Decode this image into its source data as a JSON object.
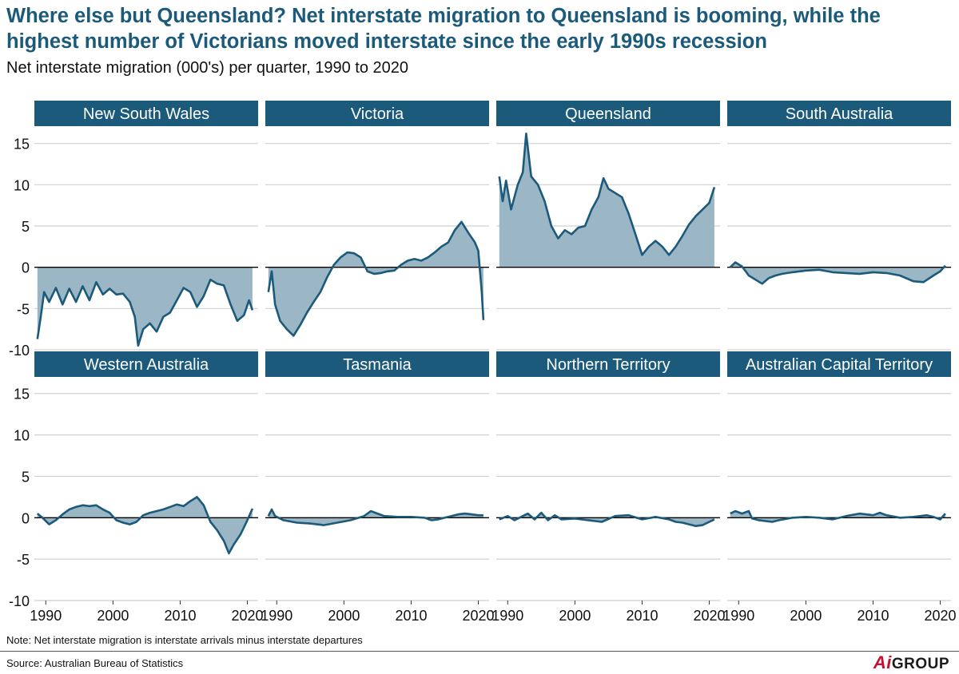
{
  "header": {
    "title": "Where else but Queensland? Net interstate migration to Queensland is booming, while the highest number of Victorians moved interstate since the early 1990s recession",
    "subtitle": "Net interstate migration (000's) per quarter, 1990 to 2020"
  },
  "footer": {
    "note": "Note: Net interstate migration is interstate arrivals minus interstate departures",
    "source": "Source: Australian Bureau of Statistics",
    "logo_mark": "Ai",
    "logo_text": "GROUP"
  },
  "colors": {
    "line": "#1b5a7a",
    "fill": "#9bb6c4",
    "strip": "#1b5a7a",
    "strip_text": "#ffffff",
    "grid": "#d0d0d0",
    "zero": "#000000"
  },
  "chart_data": {
    "type": "area",
    "layout": "facets 2 rows x 4 columns, shared axes",
    "ylim": [
      -10,
      17
    ],
    "yticks": [
      15,
      10,
      5,
      0,
      -5,
      -10
    ],
    "xlim": [
      1988.3,
      2021.6
    ],
    "xticks": [
      1990,
      2000,
      2010,
      2020
    ],
    "grid": true,
    "panels": [
      {
        "name": "New South Wales",
        "points": [
          [
            1988.75,
            -8.7
          ],
          [
            1989.25,
            -6
          ],
          [
            1989.75,
            -3
          ],
          [
            1990.5,
            -4.2
          ],
          [
            1991.5,
            -2.5
          ],
          [
            1992.5,
            -4.5
          ],
          [
            1993.5,
            -2.6
          ],
          [
            1994.5,
            -4.2
          ],
          [
            1995.5,
            -2.3
          ],
          [
            1996.5,
            -4
          ],
          [
            1997.5,
            -1.8
          ],
          [
            1998.5,
            -3.3
          ],
          [
            1999.5,
            -2.6
          ],
          [
            2000.5,
            -3.3
          ],
          [
            2001.5,
            -3.2
          ],
          [
            2002.5,
            -4.2
          ],
          [
            2003.25,
            -6
          ],
          [
            2003.75,
            -9.5
          ],
          [
            2004.5,
            -7.5
          ],
          [
            2005.5,
            -6.8
          ],
          [
            2006.5,
            -7.8
          ],
          [
            2007.5,
            -6
          ],
          [
            2008.5,
            -5.5
          ],
          [
            2009.5,
            -4
          ],
          [
            2010.5,
            -2.5
          ],
          [
            2011.5,
            -3
          ],
          [
            2012.5,
            -4.8
          ],
          [
            2013.5,
            -3.5
          ],
          [
            2014.5,
            -1.5
          ],
          [
            2015.5,
            -2
          ],
          [
            2016.5,
            -2.2
          ],
          [
            2017.5,
            -4.5
          ],
          [
            2018.5,
            -6.5
          ],
          [
            2019.5,
            -5.8
          ],
          [
            2020.25,
            -4
          ],
          [
            2020.75,
            -5.2
          ]
        ]
      },
      {
        "name": "Victoria",
        "points": [
          [
            1988.75,
            -3
          ],
          [
            1989.25,
            -0.5
          ],
          [
            1989.75,
            -4.5
          ],
          [
            1990.5,
            -6.5
          ],
          [
            1991.5,
            -7.5
          ],
          [
            1992.5,
            -8.3
          ],
          [
            1993.5,
            -7
          ],
          [
            1994.5,
            -5.5
          ],
          [
            1995.5,
            -4.2
          ],
          [
            1996.5,
            -3
          ],
          [
            1997.5,
            -1.2
          ],
          [
            1998.5,
            0.3
          ],
          [
            1999.5,
            1.2
          ],
          [
            2000.5,
            1.8
          ],
          [
            2001.5,
            1.7
          ],
          [
            2002.5,
            1.2
          ],
          [
            2003.5,
            -0.5
          ],
          [
            2004.5,
            -0.8
          ],
          [
            2005.5,
            -0.7
          ],
          [
            2006.5,
            -0.5
          ],
          [
            2007.5,
            -0.4
          ],
          [
            2008.5,
            0.3
          ],
          [
            2009.5,
            0.8
          ],
          [
            2010.5,
            1
          ],
          [
            2011.5,
            0.8
          ],
          [
            2012.5,
            1.2
          ],
          [
            2013.5,
            1.8
          ],
          [
            2014.5,
            2.5
          ],
          [
            2015.5,
            3
          ],
          [
            2016.5,
            4.5
          ],
          [
            2017.5,
            5.5
          ],
          [
            2018.5,
            4.2
          ],
          [
            2019.5,
            3
          ],
          [
            2020,
            2
          ],
          [
            2020.5,
            -3
          ],
          [
            2020.75,
            -6.4
          ]
        ]
      },
      {
        "name": "Queensland",
        "points": [
          [
            1988.75,
            11
          ],
          [
            1989.25,
            8
          ],
          [
            1989.75,
            10.5
          ],
          [
            1990.5,
            7
          ],
          [
            1991.5,
            10
          ],
          [
            1992.25,
            11.5
          ],
          [
            1992.75,
            16.2
          ],
          [
            1993.5,
            11
          ],
          [
            1994.5,
            10
          ],
          [
            1995.5,
            8
          ],
          [
            1996.5,
            5
          ],
          [
            1997.5,
            3.5
          ],
          [
            1998.5,
            4.5
          ],
          [
            1999.5,
            4
          ],
          [
            2000.5,
            4.8
          ],
          [
            2001.5,
            5
          ],
          [
            2002.5,
            7
          ],
          [
            2003.5,
            8.5
          ],
          [
            2004.25,
            10.8
          ],
          [
            2005,
            9.5
          ],
          [
            2006,
            9
          ],
          [
            2007,
            8.5
          ],
          [
            2008,
            6.5
          ],
          [
            2009,
            4
          ],
          [
            2010,
            1.5
          ],
          [
            2011,
            2.5
          ],
          [
            2012,
            3.2
          ],
          [
            2013,
            2.5
          ],
          [
            2014,
            1.5
          ],
          [
            2015,
            2.5
          ],
          [
            2016,
            3.8
          ],
          [
            2017,
            5.2
          ],
          [
            2018,
            6.2
          ],
          [
            2019,
            7
          ],
          [
            2020,
            7.8
          ],
          [
            2020.75,
            9.7
          ]
        ]
      },
      {
        "name": "South Australia",
        "points": [
          [
            1988.75,
            0
          ],
          [
            1989.5,
            0.6
          ],
          [
            1990.5,
            0.1
          ],
          [
            1991.5,
            -1
          ],
          [
            1992.5,
            -1.5
          ],
          [
            1993.5,
            -2
          ],
          [
            1994.5,
            -1.3
          ],
          [
            1995.5,
            -1
          ],
          [
            1996.5,
            -0.8
          ],
          [
            1998,
            -0.6
          ],
          [
            2000,
            -0.4
          ],
          [
            2002,
            -0.3
          ],
          [
            2004,
            -0.6
          ],
          [
            2006,
            -0.7
          ],
          [
            2008,
            -0.8
          ],
          [
            2010,
            -0.6
          ],
          [
            2012,
            -0.7
          ],
          [
            2014,
            -1
          ],
          [
            2016,
            -1.7
          ],
          [
            2017.5,
            -1.8
          ],
          [
            2019,
            -1
          ],
          [
            2020,
            -0.5
          ],
          [
            2020.75,
            0.2
          ]
        ]
      },
      {
        "name": "Western Australia",
        "points": [
          [
            1988.75,
            0.5
          ],
          [
            1989.5,
            0
          ],
          [
            1990.5,
            -0.8
          ],
          [
            1991.5,
            -0.3
          ],
          [
            1992.5,
            0.4
          ],
          [
            1993.5,
            1
          ],
          [
            1994.5,
            1.3
          ],
          [
            1995.5,
            1.5
          ],
          [
            1996.5,
            1.4
          ],
          [
            1997.5,
            1.5
          ],
          [
            1998.5,
            1
          ],
          [
            1999.5,
            0.6
          ],
          [
            2000.5,
            -0.3
          ],
          [
            2001.5,
            -0.6
          ],
          [
            2002.5,
            -0.8
          ],
          [
            2003.5,
            -0.5
          ],
          [
            2004.5,
            0.3
          ],
          [
            2005.5,
            0.6
          ],
          [
            2006.5,
            0.8
          ],
          [
            2007.5,
            1
          ],
          [
            2008.5,
            1.3
          ],
          [
            2009.5,
            1.6
          ],
          [
            2010.5,
            1.4
          ],
          [
            2011.5,
            2
          ],
          [
            2012.5,
            2.5
          ],
          [
            2013.5,
            1.5
          ],
          [
            2014.5,
            -0.5
          ],
          [
            2015.5,
            -1.5
          ],
          [
            2016.5,
            -2.8
          ],
          [
            2017.25,
            -4.3
          ],
          [
            2018,
            -3.2
          ],
          [
            2019,
            -2
          ],
          [
            2020,
            -0.3
          ],
          [
            2020.75,
            1.1
          ]
        ]
      },
      {
        "name": "Tasmania",
        "points": [
          [
            1988.75,
            0.2
          ],
          [
            1989.25,
            1
          ],
          [
            1989.75,
            0.2
          ],
          [
            1991,
            -0.3
          ],
          [
            1993,
            -0.6
          ],
          [
            1995,
            -0.7
          ],
          [
            1997,
            -0.9
          ],
          [
            1999,
            -0.6
          ],
          [
            2001,
            -0.3
          ],
          [
            2003,
            0.2
          ],
          [
            2004,
            0.8
          ],
          [
            2005,
            0.5
          ],
          [
            2006,
            0.2
          ],
          [
            2008,
            0.1
          ],
          [
            2010,
            0.1
          ],
          [
            2012,
            0
          ],
          [
            2013,
            -0.3
          ],
          [
            2014,
            -0.2
          ],
          [
            2015,
            0
          ],
          [
            2016,
            0.2
          ],
          [
            2017,
            0.4
          ],
          [
            2018,
            0.5
          ],
          [
            2019,
            0.4
          ],
          [
            2020,
            0.3
          ],
          [
            2020.75,
            0.3
          ]
        ]
      },
      {
        "name": "Northern Territory",
        "points": [
          [
            1988.75,
            -0.2
          ],
          [
            1990,
            0.2
          ],
          [
            1991,
            -0.3
          ],
          [
            1992,
            0.1
          ],
          [
            1993,
            0.5
          ],
          [
            1994,
            -0.2
          ],
          [
            1995,
            0.6
          ],
          [
            1996,
            -0.3
          ],
          [
            1997,
            0.3
          ],
          [
            1998,
            -0.2
          ],
          [
            2000,
            -0.1
          ],
          [
            2002,
            -0.3
          ],
          [
            2004,
            -0.5
          ],
          [
            2006,
            0.2
          ],
          [
            2008,
            0.3
          ],
          [
            2010,
            -0.2
          ],
          [
            2012,
            0.1
          ],
          [
            2014,
            -0.2
          ],
          [
            2015,
            -0.5
          ],
          [
            2016,
            -0.6
          ],
          [
            2017,
            -0.8
          ],
          [
            2018,
            -1
          ],
          [
            2019,
            -0.9
          ],
          [
            2020,
            -0.5
          ],
          [
            2020.75,
            -0.2
          ]
        ]
      },
      {
        "name": "Australian Capital Territory",
        "points": [
          [
            1988.75,
            0.5
          ],
          [
            1989.5,
            0.8
          ],
          [
            1990.5,
            0.5
          ],
          [
            1991.5,
            0.8
          ],
          [
            1992,
            -0.1
          ],
          [
            1993,
            -0.3
          ],
          [
            1995,
            -0.5
          ],
          [
            1996,
            -0.3
          ],
          [
            1998,
            0
          ],
          [
            2000,
            0.1
          ],
          [
            2002,
            0
          ],
          [
            2004,
            -0.2
          ],
          [
            2006,
            0.2
          ],
          [
            2008,
            0.5
          ],
          [
            2010,
            0.3
          ],
          [
            2011,
            0.6
          ],
          [
            2012,
            0.3
          ],
          [
            2014,
            0
          ],
          [
            2016,
            0.1
          ],
          [
            2018,
            0.3
          ],
          [
            2019,
            0.1
          ],
          [
            2020,
            -0.2
          ],
          [
            2020.75,
            0.5
          ]
        ]
      }
    ]
  }
}
